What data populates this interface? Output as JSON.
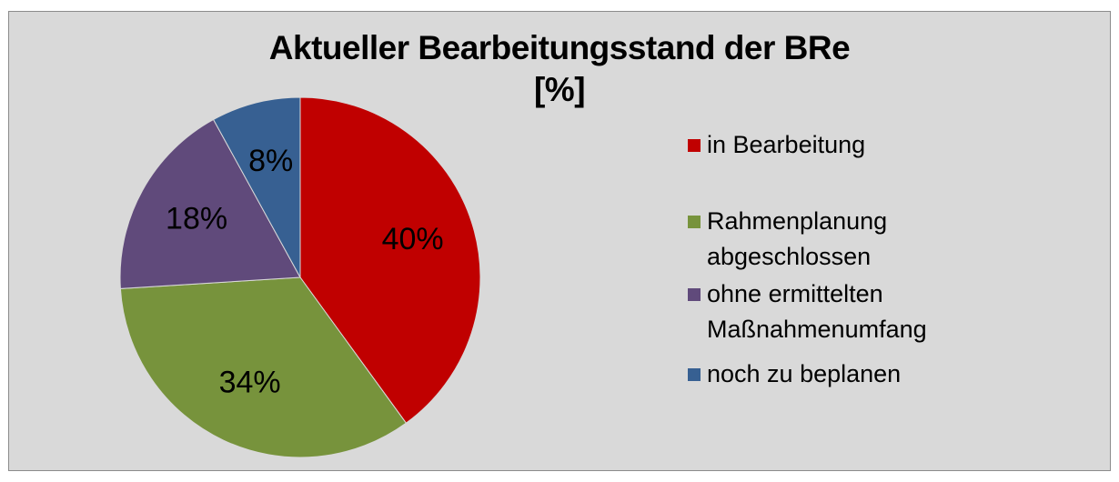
{
  "chart_data": {
    "type": "pie",
    "title": "Aktueller Bearbeitungsstand der BRe",
    "subtitle": "[%]",
    "legend_position": "right",
    "slices": [
      {
        "label": "in Bearbeitung",
        "value": 40,
        "value_label": "40%",
        "color": "#c00000"
      },
      {
        "label": "Rahmenplanung abgeschlossen",
        "label_lines": "Rahmenplanung\nabgeschlossen",
        "value": 34,
        "value_label": "34%",
        "color": "#77933c"
      },
      {
        "label": "ohne ermittelten Maßnahmenumfang",
        "label_lines": "ohne ermittelten\nMaßnahmenumfang",
        "value": 18,
        "value_label": "18%",
        "color": "#604a7b"
      },
      {
        "label": "noch zu beplanen",
        "value": 8,
        "value_label": "8%",
        "color": "#376092"
      }
    ],
    "start": "12 o'clock",
    "direction": "clockwise"
  }
}
